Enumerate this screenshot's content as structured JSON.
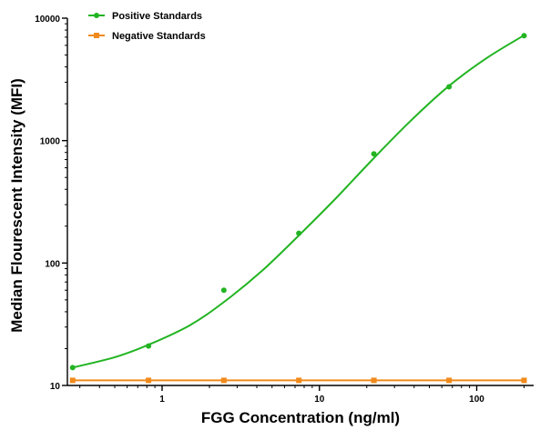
{
  "chart_data": {
    "type": "scatter",
    "title": "",
    "xlabel": "FGG Concentration (ng/ml)",
    "ylabel": "Median Flourescent Intensity (MFI)",
    "x_scale": "log",
    "y_scale": "log",
    "xlim": [
      0.25,
      230
    ],
    "ylim": [
      10,
      10000
    ],
    "x_tick_values": [
      1,
      10,
      100
    ],
    "x_tick_labels": [
      "1",
      "10",
      "100"
    ],
    "y_tick_values": [
      10,
      100,
      1000,
      10000
    ],
    "y_tick_labels": [
      "10",
      "100",
      "1000",
      "10000"
    ],
    "grid": false,
    "legend_position": "top-left",
    "series": [
      {
        "name": "Positive Standards",
        "color": "#22b422",
        "marker": "circle",
        "fit": "sigmoid-curve",
        "points": [
          {
            "x": 0.27,
            "y": 14
          },
          {
            "x": 0.82,
            "y": 21
          },
          {
            "x": 2.47,
            "y": 60
          },
          {
            "x": 7.4,
            "y": 175
          },
          {
            "x": 22.2,
            "y": 780
          },
          {
            "x": 66.7,
            "y": 2750
          },
          {
            "x": 200,
            "y": 7200
          }
        ],
        "curve": [
          {
            "x": 0.27,
            "y": 14
          },
          {
            "x": 0.5,
            "y": 17
          },
          {
            "x": 0.82,
            "y": 21.5
          },
          {
            "x": 1.5,
            "y": 31
          },
          {
            "x": 2.47,
            "y": 48
          },
          {
            "x": 4.3,
            "y": 86
          },
          {
            "x": 7.4,
            "y": 168
          },
          {
            "x": 12.5,
            "y": 330
          },
          {
            "x": 22.2,
            "y": 720
          },
          {
            "x": 38,
            "y": 1450
          },
          {
            "x": 66.7,
            "y": 2800
          },
          {
            "x": 115,
            "y": 4700
          },
          {
            "x": 200,
            "y": 7250
          }
        ]
      },
      {
        "name": "Negative Standards",
        "color": "#f08a1c",
        "marker": "square",
        "fit": "line",
        "points": [
          {
            "x": 0.27,
            "y": 11
          },
          {
            "x": 0.82,
            "y": 11
          },
          {
            "x": 2.47,
            "y": 11
          },
          {
            "x": 7.4,
            "y": 11
          },
          {
            "x": 22.2,
            "y": 11
          },
          {
            "x": 66.7,
            "y": 11
          },
          {
            "x": 200,
            "y": 11
          }
        ]
      }
    ]
  }
}
